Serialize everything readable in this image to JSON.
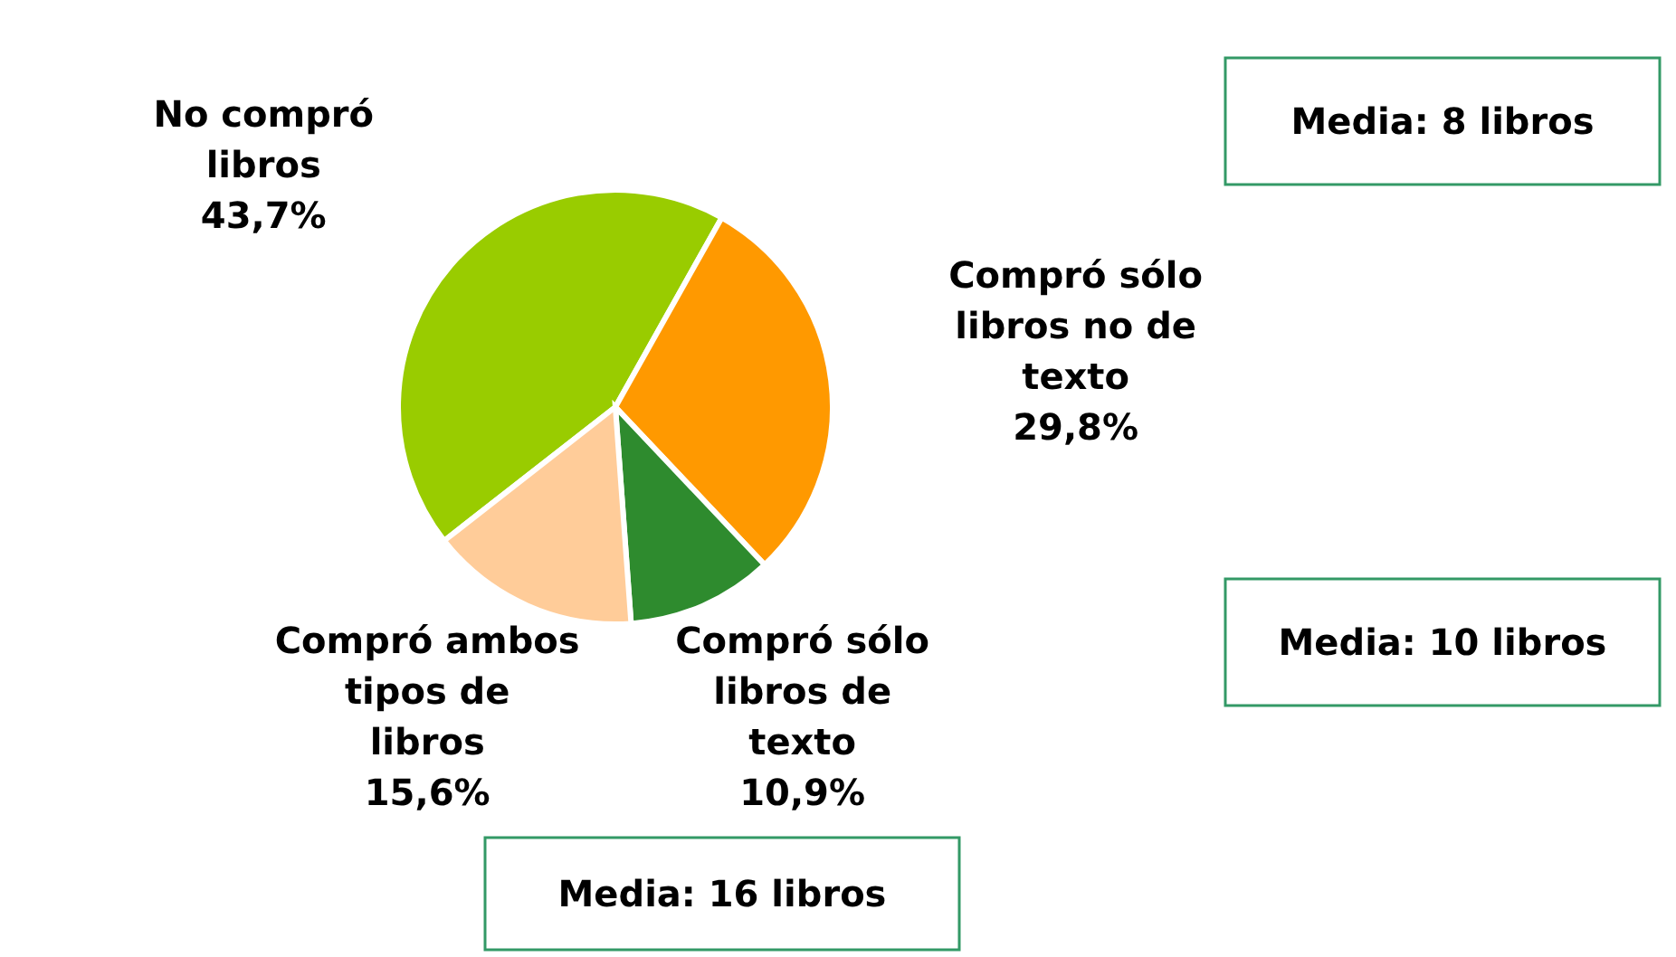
{
  "chart_data": {
    "type": "pie",
    "categories": [
      "No compró libros",
      "Compró sólo libros no de texto",
      "Compró sólo libros de texto",
      "Compró ambos tipos de libros"
    ],
    "values": [
      43.7,
      29.8,
      10.9,
      15.6
    ],
    "value_labels": [
      "43,7%",
      "29,8%",
      "10,9%",
      "15,6%"
    ],
    "colors": [
      "#99cc00",
      "#ff9900",
      "#2e8b2e",
      "#ffcc99"
    ],
    "annotations": [
      "Media: 8 libros",
      "Media: 10 libros",
      "Media: 16 libros"
    ],
    "legend": false
  }
}
